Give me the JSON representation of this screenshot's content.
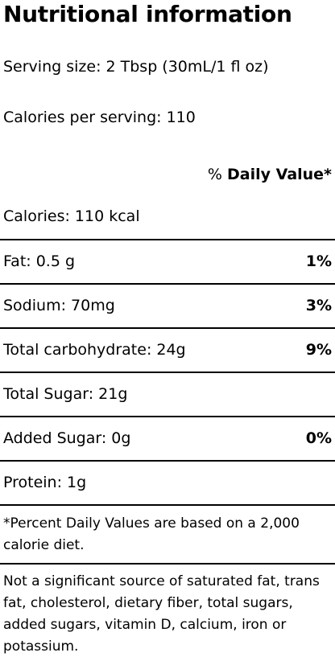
{
  "title": "Nutritional information",
  "serving_size": "Serving size: 2 Tbsp (30mL/1 fl oz)",
  "calories_per_serving": "Calories per serving: 110",
  "daily_value_header": {
    "symbol": "%",
    "label": "Daily Value*"
  },
  "rows": [
    {
      "label": "Calories: 110 kcal",
      "percent": ""
    },
    {
      "label": "Fat: 0.5 g",
      "percent": "1%"
    },
    {
      "label": "Sodium: 70mg",
      "percent": "3%"
    },
    {
      "label": "Total carbohydrate: 24g",
      "percent": "9%"
    },
    {
      "label": "Total Sugar: 21g",
      "percent": ""
    },
    {
      "label": "Added Sugar: 0g",
      "percent": "0%"
    },
    {
      "label": "Protein: 1g",
      "percent": ""
    }
  ],
  "footnote": "*Percent Daily Values are based on a 2,000 calorie diet.",
  "disclaimer": "Not a significant source of saturated fat, trans fat, cholesterol, dietary fiber, total sugars, added sugars, vitamin D, calcium, iron or potassium."
}
